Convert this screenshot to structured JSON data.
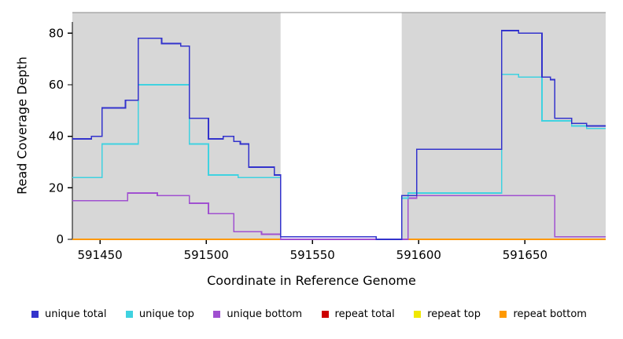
{
  "chart_data": {
    "type": "line",
    "subtype": "step",
    "title": "",
    "xlabel": "Coordinate in Reference Genome",
    "ylabel": "Read Coverage Depth",
    "xlim": [
      591437,
      591688
    ],
    "ylim": [
      0,
      88
    ],
    "x_ticks": [
      591450,
      591500,
      591550,
      591600,
      591650
    ],
    "y_ticks": [
      0,
      20,
      40,
      60,
      80
    ],
    "grid": false,
    "legend_position": "bottom",
    "colors": {
      "shading": "#d7d7d7",
      "axis": "#000000",
      "top_border": "#8a8a8a",
      "unique_total": "#3333cc",
      "unique_top": "#3fd2e0",
      "unique_bottom": "#a050d0",
      "repeat_total": "#cc0000",
      "repeat_top": "#f0e800",
      "repeat_bottom": "#ff9900"
    },
    "shaded_regions": [
      [
        591437,
        591535
      ],
      [
        591592,
        591688
      ]
    ],
    "series": [
      {
        "name": "repeat total",
        "color": "#cc0000",
        "points": [
          [
            591437,
            0
          ]
        ]
      },
      {
        "name": "repeat top",
        "color": "#f0e800",
        "points": [
          [
            591437,
            0
          ]
        ]
      },
      {
        "name": "repeat bottom",
        "color": "#ff9900",
        "points": [
          [
            591437,
            0
          ]
        ]
      },
      {
        "name": "unique bottom",
        "color": "#a050d0",
        "points": [
          [
            591437,
            15
          ],
          [
            591463,
            18
          ],
          [
            591477,
            17
          ],
          [
            591492,
            14
          ],
          [
            591501,
            10
          ],
          [
            591513,
            3
          ],
          [
            591526,
            2
          ],
          [
            591535,
            0
          ],
          [
            591595,
            16
          ],
          [
            591599,
            17
          ],
          [
            591664,
            1
          ]
        ]
      },
      {
        "name": "unique top",
        "color": "#3fd2e0",
        "points": [
          [
            591437,
            24
          ],
          [
            591451,
            37
          ],
          [
            591468,
            60
          ],
          [
            591492,
            37
          ],
          [
            591501,
            25
          ],
          [
            591515,
            24
          ],
          [
            591535,
            1
          ],
          [
            591580,
            0
          ],
          [
            591592,
            16
          ],
          [
            591595,
            18
          ],
          [
            591639,
            64
          ],
          [
            591647,
            63
          ],
          [
            591658,
            46
          ],
          [
            591672,
            44
          ],
          [
            591679,
            43
          ]
        ]
      },
      {
        "name": "unique total",
        "color": "#3333cc",
        "points": [
          [
            591437,
            39
          ],
          [
            591446,
            40
          ],
          [
            591451,
            51
          ],
          [
            591462,
            54
          ],
          [
            591468,
            78
          ],
          [
            591479,
            76
          ],
          [
            591488,
            75
          ],
          [
            591492,
            47
          ],
          [
            591501,
            39
          ],
          [
            591508,
            40
          ],
          [
            591513,
            38
          ],
          [
            591516,
            37
          ],
          [
            591520,
            28
          ],
          [
            591532,
            25
          ],
          [
            591535,
            1
          ],
          [
            591580,
            0
          ],
          [
            591592,
            17
          ],
          [
            591599,
            35
          ],
          [
            591639,
            81
          ],
          [
            591647,
            80
          ],
          [
            591658,
            63
          ],
          [
            591662,
            62
          ],
          [
            591664,
            47
          ],
          [
            591672,
            45
          ],
          [
            591679,
            44
          ]
        ]
      }
    ],
    "legend": [
      {
        "label": "unique total",
        "color": "#3333cc"
      },
      {
        "label": "unique top",
        "color": "#3fd2e0"
      },
      {
        "label": "unique bottom",
        "color": "#a050d0"
      },
      {
        "label": "repeat total",
        "color": "#cc0000"
      },
      {
        "label": "repeat top",
        "color": "#f0e800"
      },
      {
        "label": "repeat bottom",
        "color": "#ff9900"
      }
    ]
  }
}
